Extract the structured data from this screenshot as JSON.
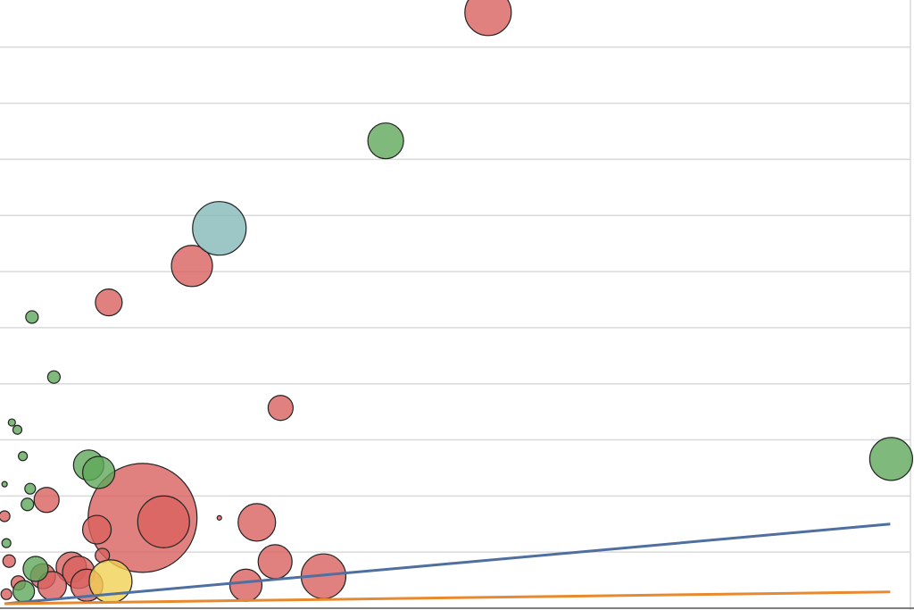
{
  "chart_data": {
    "type": "bubble",
    "xlim": [
      0,
      100
    ],
    "ylim": [
      0,
      10.84
    ],
    "yticks": [
      1,
      2,
      3,
      4,
      5,
      6,
      7,
      8,
      9,
      10
    ],
    "grid": true,
    "series": [
      {
        "mode": "bubble",
        "color": "#d9625f",
        "x": [
          53.4,
          21.0,
          11.9,
          30.7,
          5.1,
          15.6,
          17.9,
          24.0,
          0.5,
          28.1,
          10.6,
          30.1,
          1.0,
          7.8,
          11.2,
          35.4,
          8.6,
          9.5,
          4.7,
          5.7,
          26.9,
          2.0,
          0.7
        ],
        "values": [
          10.62,
          6.1,
          5.45,
          3.57,
          1.93,
          1.61,
          1.54,
          1.61,
          1.64,
          1.53,
          1.4,
          0.83,
          0.84,
          0.73,
          0.94,
          0.57,
          0.64,
          0.41,
          0.57,
          0.4,
          0.41,
          0.45,
          0.25
        ],
        "sizes": [
          26,
          23,
          15,
          14,
          14,
          61,
          29,
          2.5,
          6,
          21,
          16,
          19,
          7,
          17,
          8,
          25,
          18,
          18,
          14,
          16,
          18,
          8,
          6
        ]
      },
      {
        "mode": "bubble",
        "color": "#5fa85a",
        "x": [
          42.2,
          3.5,
          5.9,
          1.3,
          1.9,
          2.5,
          97.5,
          9.7,
          10.8,
          0.5,
          3.3,
          3.0,
          0.7,
          3.9,
          2.6
        ],
        "values": [
          8.33,
          5.19,
          4.12,
          3.31,
          3.18,
          2.71,
          2.66,
          2.55,
          2.42,
          2.21,
          2.13,
          1.85,
          1.16,
          0.7,
          0.3
        ],
        "sizes": [
          20,
          7,
          7,
          4,
          5,
          5,
          24,
          17,
          18,
          3,
          6,
          7,
          5,
          14,
          12
        ]
      },
      {
        "mode": "bubble",
        "color": "#85b9b8",
        "x": [
          24.0
        ],
        "values": [
          6.77
        ],
        "sizes": [
          30
        ]
      },
      {
        "mode": "bubble",
        "color": "#f1cf55",
        "x": [
          12.1
        ],
        "values": [
          0.48
        ],
        "sizes": [
          24
        ]
      },
      {
        "mode": "line",
        "color": "#4e6fa0",
        "x": [
          0.5,
          97.4
        ],
        "values": [
          0.08,
          1.5
        ]
      },
      {
        "mode": "line",
        "color": "#e8892e",
        "x": [
          0.5,
          97.4
        ],
        "values": [
          0.08,
          0.29
        ]
      }
    ]
  }
}
